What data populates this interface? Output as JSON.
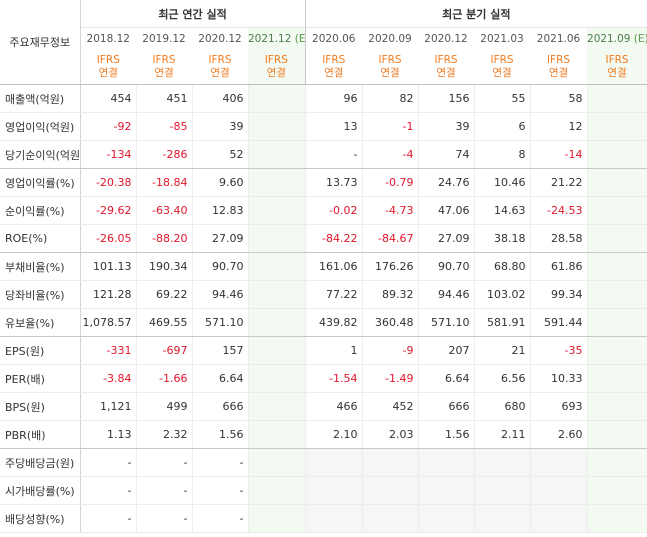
{
  "header": {
    "corner_label": "주요재무정보",
    "annual_title": "최근 연간 실적",
    "quarter_title": "최근 분기 실적",
    "periods": [
      "2018.12",
      "2019.12",
      "2020.12",
      "2021.12",
      "2020.06",
      "2020.09",
      "2020.12",
      "2021.03",
      "2021.06",
      "2021.09"
    ],
    "estimate_suffix": "(E)",
    "ifrs_label": "IFRS",
    "consolidated_label": "연결"
  },
  "rows": [
    {
      "label": "매출액(억원)",
      "values": [
        "454",
        "451",
        "406",
        "",
        "96",
        "82",
        "156",
        "55",
        "58",
        ""
      ]
    },
    {
      "label": "영업이익(억원)",
      "values": [
        "-92",
        "-85",
        "39",
        "",
        "13",
        "-1",
        "39",
        "6",
        "12",
        ""
      ]
    },
    {
      "label": "당기순이익(억원)",
      "values": [
        "-134",
        "-286",
        "52",
        "",
        "-",
        "-4",
        "74",
        "8",
        "-14",
        ""
      ]
    },
    {
      "label": "영업이익률(%)",
      "values": [
        "-20.38",
        "-18.84",
        "9.60",
        "",
        "13.73",
        "-0.79",
        "24.76",
        "10.46",
        "21.22",
        ""
      ]
    },
    {
      "label": "순이익률(%)",
      "values": [
        "-29.62",
        "-63.40",
        "12.83",
        "",
        "-0.02",
        "-4.73",
        "47.06",
        "14.63",
        "-24.53",
        ""
      ]
    },
    {
      "label": "ROE(%)",
      "values": [
        "-26.05",
        "-88.20",
        "27.09",
        "",
        "-84.22",
        "-84.67",
        "27.09",
        "38.18",
        "28.58",
        ""
      ]
    },
    {
      "label": "부채비율(%)",
      "values": [
        "101.13",
        "190.34",
        "90.70",
        "",
        "161.06",
        "176.26",
        "90.70",
        "68.80",
        "61.86",
        ""
      ]
    },
    {
      "label": "당좌비율(%)",
      "values": [
        "121.28",
        "69.22",
        "94.46",
        "",
        "77.22",
        "89.32",
        "94.46",
        "103.02",
        "99.34",
        ""
      ]
    },
    {
      "label": "유보율(%)",
      "values": [
        "1,078.57",
        "469.55",
        "571.10",
        "",
        "439.82",
        "360.48",
        "571.10",
        "581.91",
        "591.44",
        ""
      ]
    },
    {
      "label": "EPS(원)",
      "values": [
        "-331",
        "-697",
        "157",
        "",
        "1",
        "-9",
        "207",
        "21",
        "-35",
        ""
      ]
    },
    {
      "label": "PER(배)",
      "values": [
        "-3.84",
        "-1.66",
        "6.64",
        "",
        "-1.54",
        "-1.49",
        "6.64",
        "6.56",
        "10.33",
        ""
      ]
    },
    {
      "label": "BPS(원)",
      "values": [
        "1,121",
        "499",
        "666",
        "",
        "466",
        "452",
        "666",
        "680",
        "693",
        ""
      ]
    },
    {
      "label": "PBR(배)",
      "values": [
        "1.13",
        "2.32",
        "1.56",
        "",
        "2.10",
        "2.03",
        "1.56",
        "2.11",
        "2.60",
        ""
      ]
    },
    {
      "label": "주당배당금(원)",
      "values": [
        "-",
        "-",
        "-",
        "",
        "",
        "",
        "",
        "",
        "",
        ""
      ]
    },
    {
      "label": "시가배당률(%)",
      "values": [
        "-",
        "-",
        "-",
        "",
        "",
        "",
        "",
        "",
        "",
        ""
      ]
    },
    {
      "label": "배당성향(%)",
      "values": [
        "-",
        "-",
        "-",
        "",
        "",
        "",
        "",
        "",
        "",
        ""
      ]
    }
  ],
  "colors": {
    "negative": "#e0162b",
    "ifrs": "#f07a1f",
    "estimate_bg": "#f3faf1"
  }
}
